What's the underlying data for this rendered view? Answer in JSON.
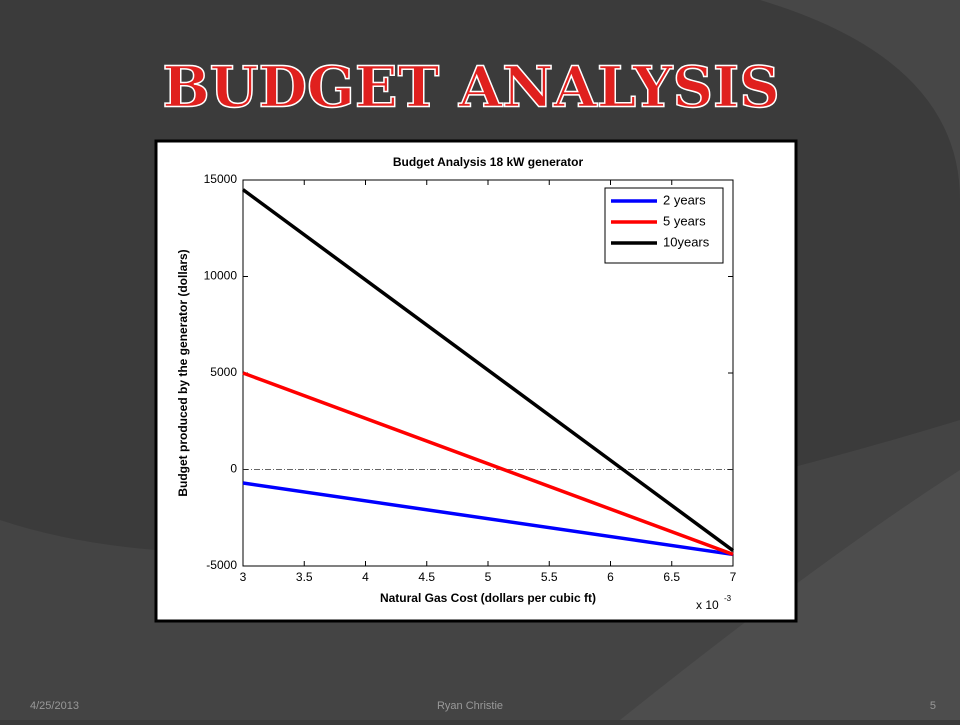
{
  "slide_title": "BUDGET ANALYSIS",
  "footer": {
    "date": "4/25/2013",
    "author": "Ryan Christie",
    "page": "5"
  },
  "chart_data": {
    "type": "line",
    "title": "Budget Analysis 18 kW generator",
    "x_label": "Natural Gas Cost (dollars per cubic ft)",
    "y_label": "Budget produced by the generator (dollars)",
    "x_multiplier": "x 10",
    "x_exponent": "-3",
    "x": [
      3,
      7
    ],
    "series": [
      {
        "name": "2 years",
        "color": "#0000ff",
        "values": [
          -700,
          -4400
        ]
      },
      {
        "name": "5 years",
        "color": "#ff0000",
        "values": [
          5000,
          -4400
        ]
      },
      {
        "name": "10years",
        "color": "#000000",
        "values": [
          14500,
          -4200
        ]
      }
    ],
    "reference_lines": [
      {
        "y": 0
      }
    ],
    "xlim": [
      3,
      7
    ],
    "xticks": [
      3,
      3.5,
      4,
      4.5,
      5,
      5.5,
      6,
      6.5,
      7
    ],
    "ylim": [
      -5000,
      15000
    ],
    "yticks": [
      -5000,
      0,
      5000,
      10000,
      15000
    ],
    "legend": "upper right",
    "grid": false
  }
}
